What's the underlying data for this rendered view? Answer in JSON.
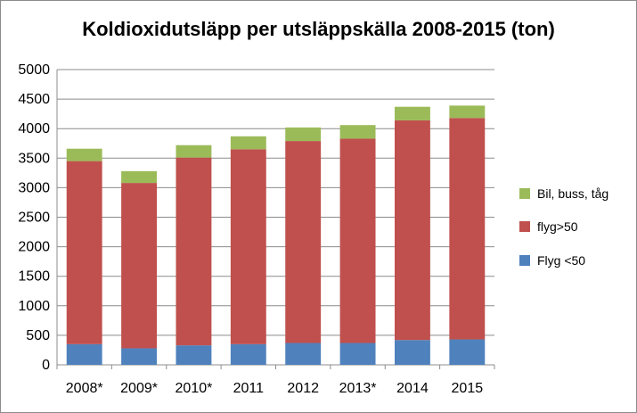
{
  "chart_data": {
    "type": "bar",
    "stacked": true,
    "title": "Koldioxidutsläpp per utsläppskälla 2008-2015 (ton)",
    "xlabel": "",
    "ylabel": "",
    "ylim": [
      0,
      5000
    ],
    "yticks": [
      "0",
      "500",
      "1000",
      "1500",
      "2000",
      "2500",
      "3000",
      "3500",
      "4000",
      "4500",
      "5000"
    ],
    "grid": true,
    "legend_position": "right",
    "categories": [
      "2008*",
      "2009*",
      "2010*",
      "2011",
      "2012",
      "2013*",
      "2014",
      "2015"
    ],
    "series": [
      {
        "name": "Flyg <50",
        "color": "#4f81bd",
        "values": [
          350,
          280,
          330,
          350,
          370,
          370,
          420,
          430
        ]
      },
      {
        "name": "flyg>50",
        "color": "#c0504d",
        "values": [
          3100,
          2800,
          3180,
          3300,
          3420,
          3460,
          3720,
          3750
        ]
      },
      {
        "name": "Bil, buss, tåg",
        "color": "#9bbb59",
        "values": [
          210,
          200,
          210,
          220,
          230,
          230,
          230,
          210
        ]
      }
    ],
    "legend_order": [
      2,
      1,
      0
    ]
  }
}
